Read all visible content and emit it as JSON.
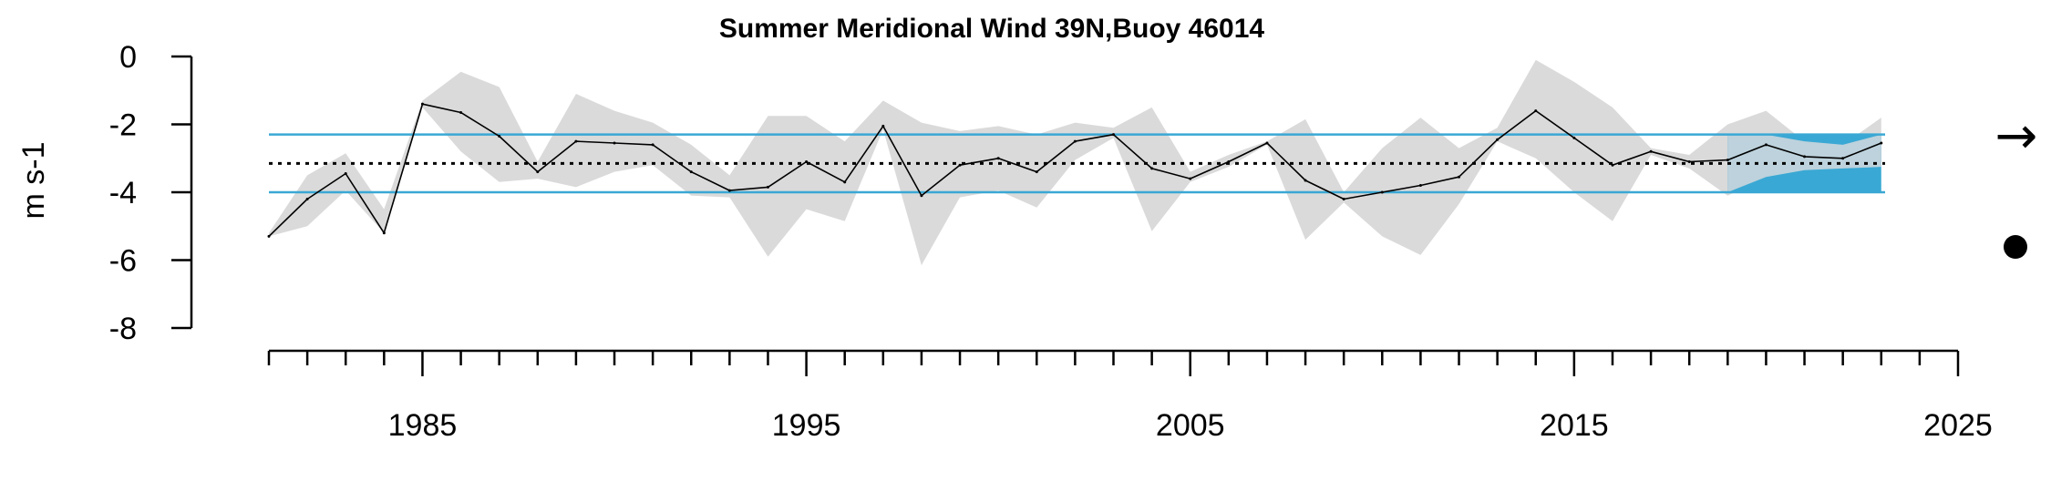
{
  "chart_data": {
    "type": "line",
    "title": "Summer Meridional Wind 39N,Buoy 46014",
    "ylabel": "m s-1",
    "xlabel": "",
    "xlim": [
      1981,
      2025
    ],
    "ylim": [
      -8,
      0
    ],
    "x_tick_labels": [
      "1985",
      "1995",
      "2005",
      "2015",
      "2025"
    ],
    "x_tick_values": [
      1985,
      1995,
      2005,
      2015,
      2025
    ],
    "y_tick_labels": [
      "0",
      "-2",
      "-4",
      "-6",
      "-8"
    ],
    "y_tick_values": [
      0,
      -2,
      -4,
      -6,
      -8
    ],
    "grid": false,
    "series": [
      {
        "x": [
          1981,
          1982,
          1983,
          1984,
          1985,
          1986,
          1987,
          1988,
          1989,
          1990,
          1991,
          1992,
          1993,
          1994,
          1995,
          1996,
          1997,
          1998,
          1999,
          2000,
          2001,
          2002,
          2003,
          2004,
          2005,
          2006,
          2007,
          2008,
          2009,
          2010,
          2011,
          2012,
          2013,
          2014,
          2015,
          2016,
          2017,
          2018,
          2019,
          2020,
          2021,
          2022,
          2023
        ],
        "values": [
          -5.3,
          -4.2,
          -3.45,
          -5.2,
          -1.4,
          -1.65,
          -2.35,
          -3.4,
          -2.5,
          -2.55,
          -2.6,
          -3.4,
          -3.95,
          -3.85,
          -3.1,
          -3.7,
          -2.05,
          -4.1,
          -3.2,
          -3.0,
          -3.4,
          -2.5,
          -2.3,
          -3.3,
          -3.6,
          -3.1,
          -2.55,
          -3.65,
          -4.2,
          -4.0,
          -3.8,
          -3.55,
          -2.45,
          -1.6,
          -2.4,
          -3.2,
          -2.8,
          -3.1,
          -3.05,
          -2.6,
          -2.95,
          -3.0,
          -2.55
        ],
        "upper": [
          -5.2,
          -3.5,
          -2.85,
          -4.5,
          -1.3,
          -0.45,
          -0.9,
          -3.1,
          -1.1,
          -1.6,
          -1.95,
          -2.6,
          -3.5,
          -1.75,
          -1.75,
          -2.5,
          -1.3,
          -1.95,
          -2.2,
          -2.05,
          -2.3,
          -1.95,
          -2.1,
          -1.5,
          -3.4,
          -2.9,
          -2.5,
          -1.85,
          -4.0,
          -2.7,
          -1.8,
          -2.7,
          -2.1,
          -0.1,
          -0.75,
          -1.5,
          -2.7,
          -2.9,
          -2.0,
          -1.6,
          -2.5,
          -2.6,
          -1.8
        ],
        "lower": [
          -5.3,
          -5.0,
          -3.95,
          -5.2,
          -1.5,
          -2.8,
          -3.7,
          -3.6,
          -3.85,
          -3.4,
          -3.2,
          -4.1,
          -4.15,
          -5.9,
          -4.5,
          -4.85,
          -2.15,
          -6.15,
          -4.15,
          -3.95,
          -4.45,
          -3.05,
          -2.4,
          -5.15,
          -3.7,
          -3.25,
          -2.6,
          -5.4,
          -4.3,
          -5.3,
          -5.85,
          -4.35,
          -2.5,
          -3.0,
          -4.0,
          -4.85,
          -2.9,
          -3.3,
          -4.1,
          -3.55,
          -3.35,
          -3.3,
          -3.25
        ]
      }
    ],
    "mean": -3.15,
    "sd_upper": -2.3,
    "sd_lower": -4.0,
    "recent_window": [
      2019,
      2023
    ],
    "trend_symbol": "→",
    "colors": {
      "line": "#000000",
      "ribbon": "#dadada",
      "sd_lines": "#3aa8d4",
      "recent_fill": "#3aa8d4",
      "recent_overlay": "#bdd2dc",
      "mean_line": "#000000"
    }
  }
}
